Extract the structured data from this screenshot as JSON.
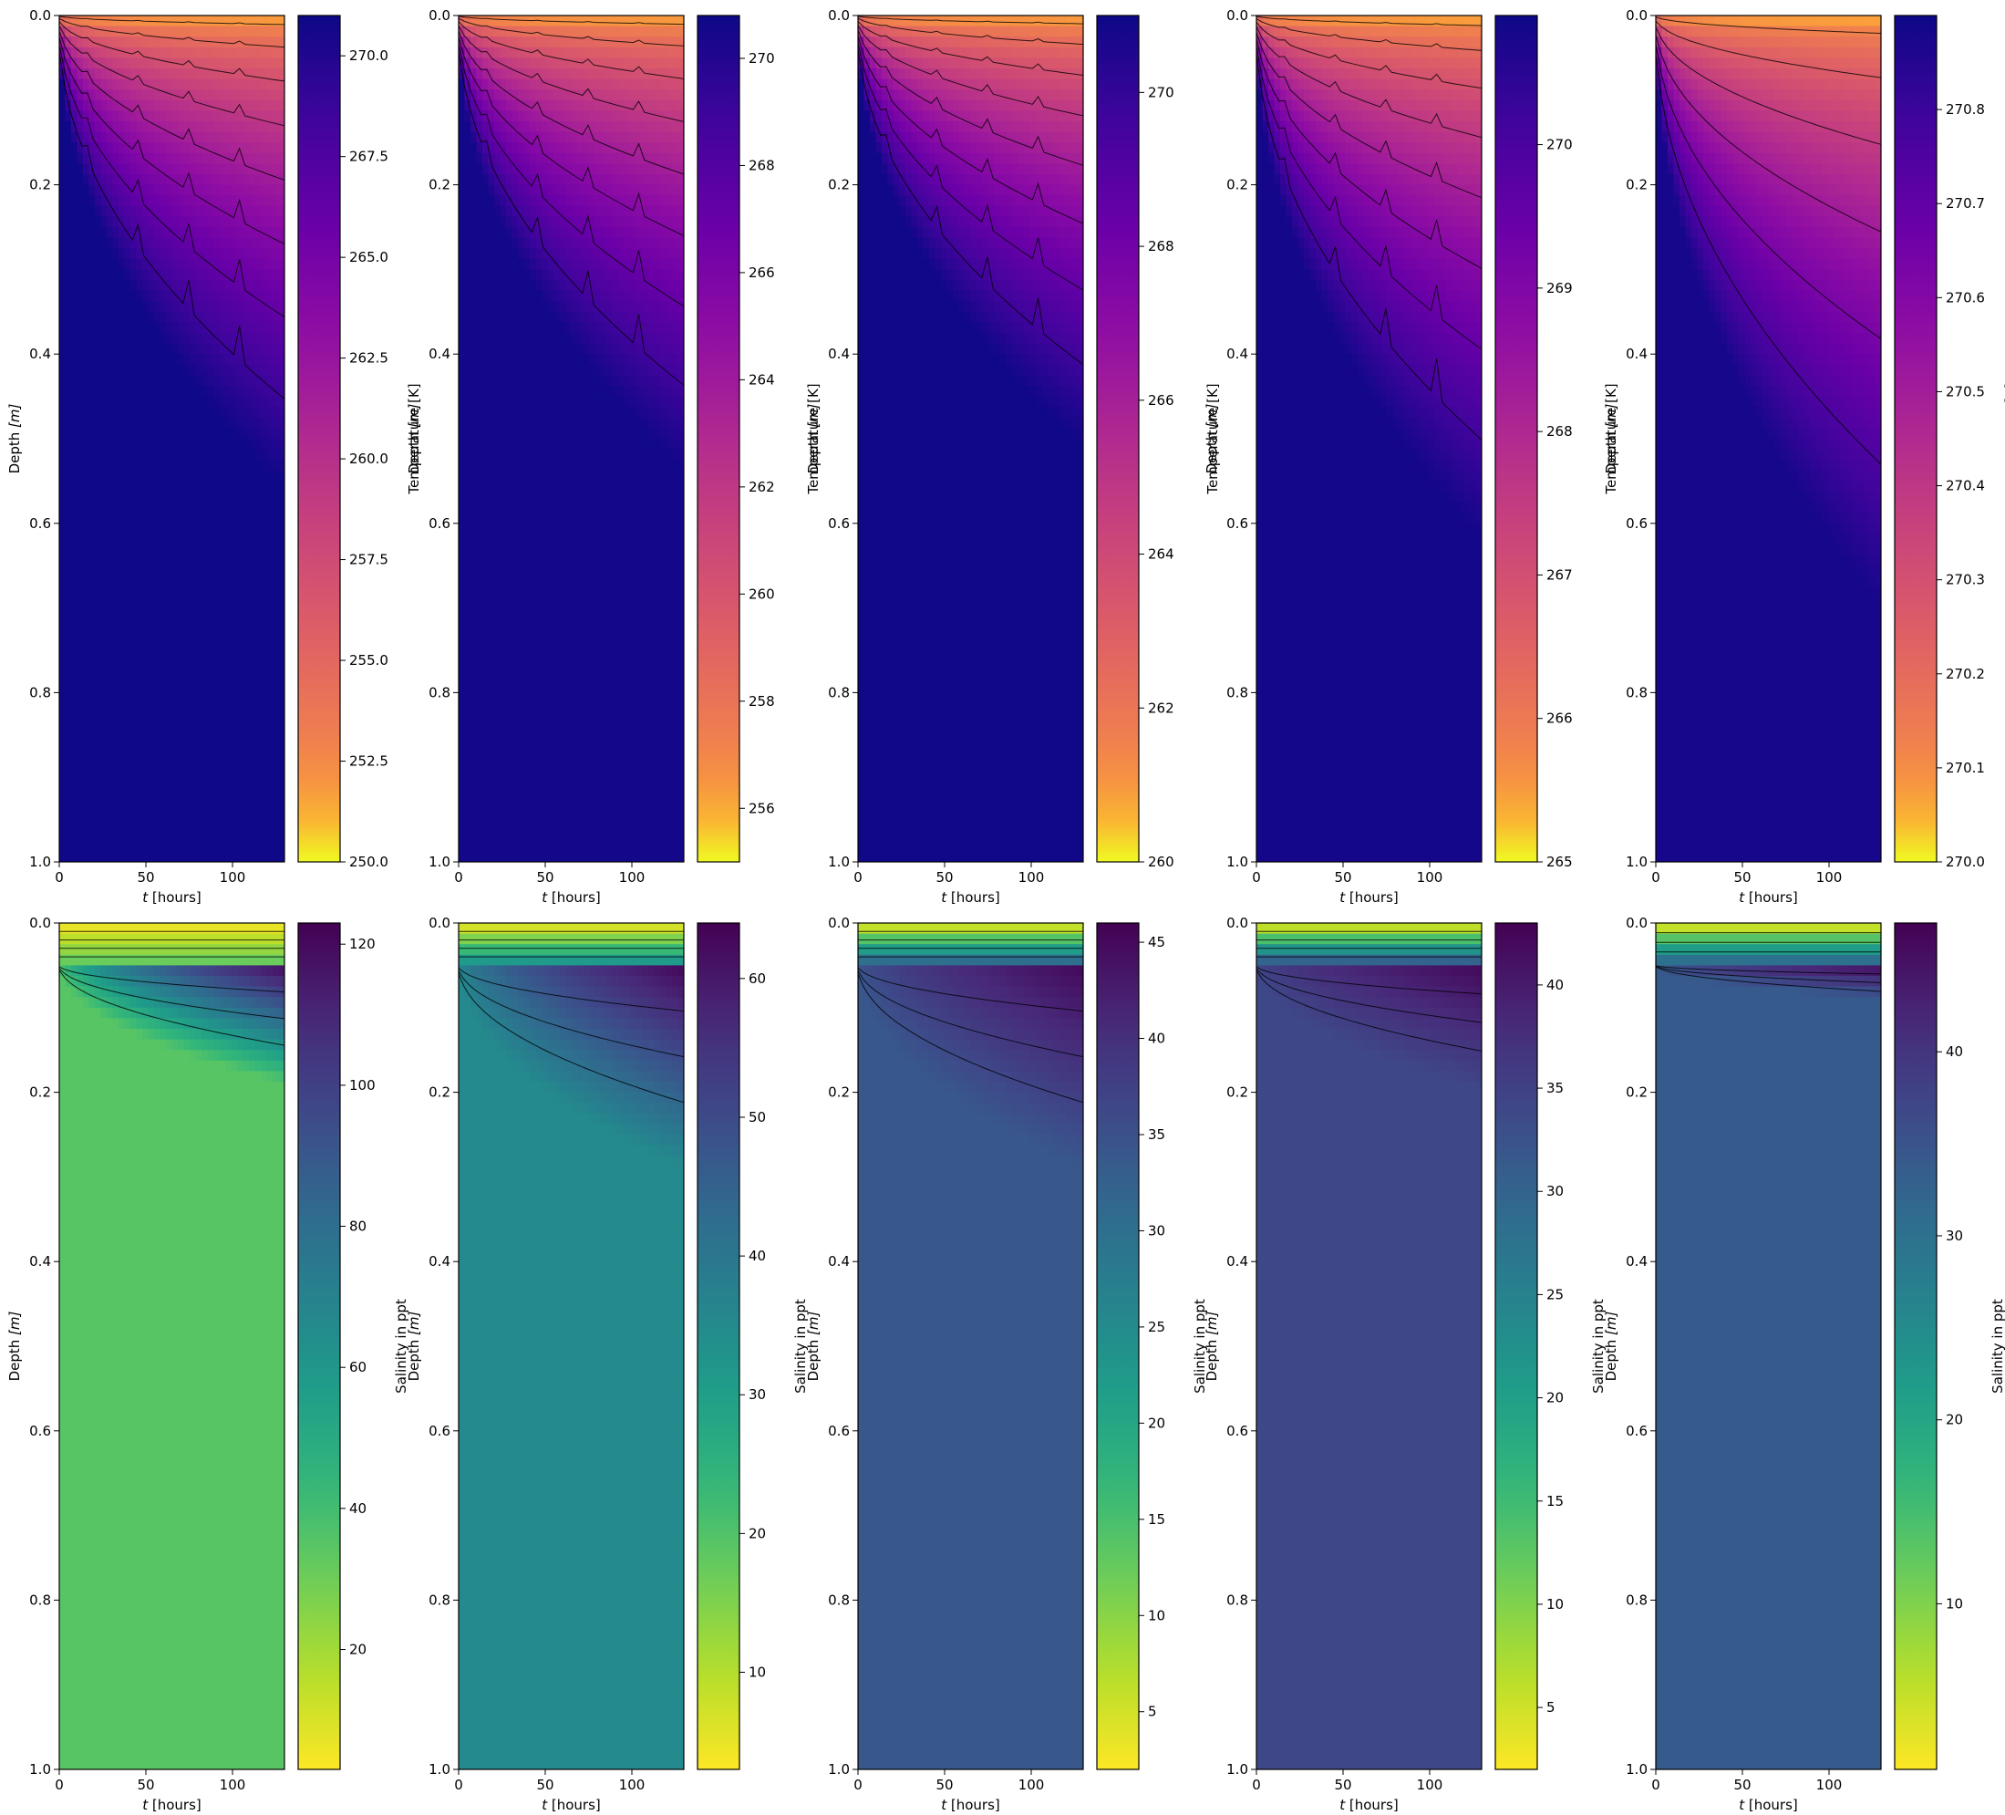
{
  "figure": {
    "rows": 2,
    "cols": 5,
    "time_unit_label": "[hours]",
    "time_symbol": "t",
    "depth_label": "Depth",
    "depth_unit_label": "[m]"
  },
  "chart_data": [
    {
      "type": "heatmap",
      "row": 0,
      "col": 0,
      "variable": "temperature",
      "colormap": "plasma_r",
      "xlabel": "t [hours]",
      "ylabel": "Depth [m]",
      "colorbar_label": "Temperature [K]",
      "xlim": [
        0,
        130
      ],
      "ylim": [
        0,
        1.0
      ],
      "xticks": [
        0,
        50,
        100
      ],
      "yticks": [
        0.0,
        0.2,
        0.4,
        0.6,
        0.8,
        1.0
      ],
      "clim": [
        250,
        271
      ],
      "cbar_ticks": [
        250.0,
        252.5,
        255.0,
        257.5,
        260.0,
        262.5,
        265.0,
        267.5,
        270.0
      ],
      "cbar_tick_decimals": 1,
      "surface_value": 250,
      "deep_value": 270.9,
      "front_depth_end": 0.56,
      "contours": 8,
      "jagged": true
    },
    {
      "type": "heatmap",
      "row": 0,
      "col": 1,
      "variable": "temperature",
      "colormap": "plasma_r",
      "xlabel": "t [hours]",
      "ylabel": "Depth [m]",
      "colorbar_label": "Temperature [K]",
      "xlim": [
        0,
        130
      ],
      "ylim": [
        0,
        1.0
      ],
      "xticks": [
        0,
        50,
        100
      ],
      "yticks": [
        0.0,
        0.2,
        0.4,
        0.6,
        0.8,
        1.0
      ],
      "clim": [
        255,
        270.8
      ],
      "cbar_ticks": [
        256,
        258,
        260,
        262,
        264,
        266,
        268,
        270
      ],
      "cbar_tick_decimals": 0,
      "surface_value": 255,
      "deep_value": 270.6,
      "front_depth_end": 0.54,
      "contours": 8,
      "jagged": true
    },
    {
      "type": "heatmap",
      "row": 0,
      "col": 2,
      "variable": "temperature",
      "colormap": "plasma_r",
      "xlabel": "t [hours]",
      "ylabel": "Depth [m]",
      "colorbar_label": "Temperature [K]",
      "xlim": [
        0,
        130
      ],
      "ylim": [
        0,
        1.0
      ],
      "xticks": [
        0,
        50,
        100
      ],
      "yticks": [
        0.0,
        0.2,
        0.4,
        0.6,
        0.8,
        1.0
      ],
      "clim": [
        260,
        271
      ],
      "cbar_ticks": [
        260,
        262,
        264,
        266,
        268,
        270
      ],
      "cbar_tick_decimals": 0,
      "surface_value": 260,
      "deep_value": 270.9,
      "front_depth_end": 0.51,
      "contours": 8,
      "jagged": true
    },
    {
      "type": "heatmap",
      "row": 0,
      "col": 3,
      "variable": "temperature",
      "colormap": "plasma_r",
      "xlabel": "t [hours]",
      "ylabel": "Depth [m]",
      "colorbar_label": "Temperature [K]",
      "xlim": [
        0,
        130
      ],
      "ylim": [
        0,
        1.0
      ],
      "xticks": [
        0,
        50,
        100
      ],
      "yticks": [
        0.0,
        0.2,
        0.4,
        0.6,
        0.8,
        1.0
      ],
      "clim": [
        265,
        270.9
      ],
      "cbar_ticks": [
        265,
        266,
        267,
        268,
        269,
        270
      ],
      "cbar_tick_decimals": 0,
      "surface_value": 265,
      "deep_value": 270.8,
      "front_depth_end": 0.62,
      "contours": 8,
      "jagged": true
    },
    {
      "type": "heatmap",
      "row": 0,
      "col": 4,
      "variable": "temperature",
      "colormap": "plasma_r",
      "xlabel": "t [hours]",
      "ylabel": "Depth [m]",
      "colorbar_label": "Temperature [K]",
      "xlim": [
        0,
        130
      ],
      "ylim": [
        0,
        1.0
      ],
      "xticks": [
        0,
        50,
        100
      ],
      "yticks": [
        0.0,
        0.2,
        0.4,
        0.6,
        0.8,
        1.0
      ],
      "clim": [
        270.0,
        270.9
      ],
      "cbar_ticks": [
        270.0,
        270.1,
        270.2,
        270.3,
        270.4,
        270.5,
        270.6,
        270.7,
        270.8
      ],
      "cbar_tick_decimals": 1,
      "surface_value": 270.0,
      "deep_value": 270.88,
      "front_depth_end": 0.7,
      "contours": 6,
      "jagged": false
    },
    {
      "type": "heatmap",
      "row": 1,
      "col": 0,
      "variable": "salinity",
      "colormap": "viridis_r",
      "xlabel": "t [hours]",
      "ylabel": "Depth [m]",
      "colorbar_label": "Salinity in ppt",
      "xlim": [
        0,
        130
      ],
      "ylim": [
        0,
        1.0
      ],
      "xticks": [
        0,
        50,
        100
      ],
      "yticks": [
        0.0,
        0.2,
        0.4,
        0.6,
        0.8,
        1.0
      ],
      "clim": [
        3,
        123
      ],
      "cbar_ticks": [
        20,
        40,
        60,
        80,
        100,
        120
      ],
      "cbar_tick_decimals": 0,
      "surface_value": 3,
      "bulk_value": 35,
      "peak_value": 120,
      "plume_depth_end": 0.19,
      "contours": 7
    },
    {
      "type": "heatmap",
      "row": 1,
      "col": 1,
      "variable": "salinity",
      "colormap": "viridis_r",
      "xlabel": "t [hours]",
      "ylabel": "Depth [m]",
      "colorbar_label": "Salinity in ppt",
      "xlim": [
        0,
        130
      ],
      "ylim": [
        0,
        1.0
      ],
      "xticks": [
        0,
        50,
        100
      ],
      "yticks": [
        0.0,
        0.2,
        0.4,
        0.6,
        0.8,
        1.0
      ],
      "clim": [
        3,
        64
      ],
      "cbar_ticks": [
        10,
        20,
        30,
        40,
        50,
        60
      ],
      "cbar_tick_decimals": 0,
      "surface_value": 3,
      "bulk_value": 35,
      "peak_value": 63,
      "plume_depth_end": 0.29,
      "contours": 7
    },
    {
      "type": "heatmap",
      "row": 1,
      "col": 2,
      "variable": "salinity",
      "colormap": "viridis_r",
      "xlabel": "t [hours]",
      "ylabel": "Depth [m]",
      "colorbar_label": "Salinity in ppt",
      "xlim": [
        0,
        130
      ],
      "ylim": [
        0,
        1.0
      ],
      "xticks": [
        0,
        50,
        100
      ],
      "yticks": [
        0.0,
        0.2,
        0.4,
        0.6,
        0.8,
        1.0
      ],
      "clim": [
        2,
        46
      ],
      "cbar_ticks": [
        5,
        10,
        15,
        20,
        25,
        30,
        35,
        40,
        45
      ],
      "cbar_tick_decimals": 0,
      "surface_value": 2,
      "bulk_value": 34,
      "peak_value": 45,
      "plume_depth_end": 0.29,
      "contours": 7
    },
    {
      "type": "heatmap",
      "row": 1,
      "col": 3,
      "variable": "salinity",
      "colormap": "viridis_r",
      "xlabel": "t [hours]",
      "ylabel": "Depth [m]",
      "colorbar_label": "Salinity in ppt",
      "xlim": [
        0,
        130
      ],
      "ylim": [
        0,
        1.0
      ],
      "xticks": [
        0,
        50,
        100
      ],
      "yticks": [
        0.0,
        0.2,
        0.4,
        0.6,
        0.8,
        1.0
      ],
      "clim": [
        2,
        43
      ],
      "cbar_ticks": [
        5,
        10,
        15,
        20,
        25,
        30,
        35,
        40
      ],
      "cbar_tick_decimals": 0,
      "surface_value": 2,
      "bulk_value": 34,
      "peak_value": 42,
      "plume_depth_end": 0.2,
      "contours": 7
    },
    {
      "type": "heatmap",
      "row": 1,
      "col": 4,
      "variable": "salinity",
      "colormap": "viridis_r",
      "xlabel": "t [hours]",
      "ylabel": "Depth [m]",
      "colorbar_label": "Salinity in ppt",
      "xlim": [
        0,
        130
      ],
      "ylim": [
        0,
        1.0
      ],
      "xticks": [
        0,
        50,
        100
      ],
      "yticks": [
        0.0,
        0.2,
        0.4,
        0.6,
        0.8,
        1.0
      ],
      "clim": [
        1,
        47
      ],
      "cbar_ticks": [
        10,
        20,
        30,
        40
      ],
      "cbar_tick_decimals": 0,
      "surface_value": 1,
      "bulk_value": 34,
      "peak_value": 46,
      "plume_depth_end": 0.09,
      "contours": 6
    }
  ]
}
